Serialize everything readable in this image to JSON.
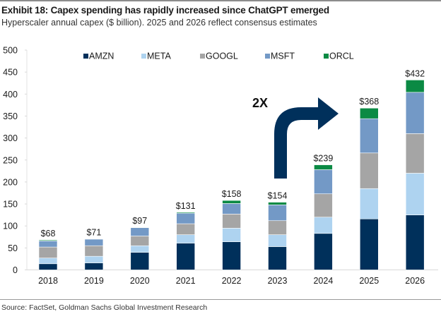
{
  "header": {
    "title": "Exhibit 18: Capex spending has rapidly increased since ChatGPT emerged",
    "subtitle": "Hyperscaler annual capex ($ billion). 2025 and 2026 reflect consensus estimates"
  },
  "footer": {
    "source": "Source: FactSet, Goldman Sachs Global Investment Research"
  },
  "chart_data": {
    "type": "bar",
    "stacked": true,
    "title": "Exhibit 18: Capex spending has rapidly increased since ChatGPT emerged",
    "subtitle": "Hyperscaler annual capex ($ billion). 2025 and 2026 reflect consensus estimates",
    "xlabel": "",
    "ylabel": "",
    "ylim": [
      0,
      500
    ],
    "yticks": [
      0,
      50,
      100,
      150,
      200,
      250,
      300,
      350,
      400,
      450,
      500
    ],
    "grid": false,
    "legend_position": "top",
    "categories": [
      "2018",
      "2019",
      "2020",
      "2021",
      "2022",
      "2023",
      "2024",
      "2025",
      "2026"
    ],
    "series": [
      {
        "name": "AMZN",
        "color": "#00305b",
        "values": [
          14,
          16,
          40,
          61,
          64,
          53,
          83,
          116,
          125
        ]
      },
      {
        "name": "META",
        "color": "#aed3f0",
        "values": [
          13,
          15,
          15,
          19,
          31,
          27,
          37,
          69,
          95
        ]
      },
      {
        "name": "GOOGL",
        "color": "#a5a5a5",
        "values": [
          25,
          24,
          22,
          25,
          32,
          32,
          53,
          81,
          90
        ]
      },
      {
        "name": "MSFT",
        "color": "#7399c6",
        "values": [
          14,
          15,
          19,
          24,
          24,
          36,
          55,
          78,
          94
        ]
      },
      {
        "name": "ORCL",
        "color": "#0b8a44",
        "values": [
          2,
          1,
          1,
          2,
          7,
          6,
          11,
          24,
          28
        ]
      }
    ],
    "totals": [
      68,
      71,
      97,
      131,
      158,
      154,
      239,
      368,
      432
    ],
    "total_labels": [
      "$68",
      "$71",
      "$97",
      "$131",
      "$158",
      "$154",
      "$239",
      "$368",
      "$432"
    ],
    "annotations": [
      {
        "text": "2X",
        "type": "curved-arrow",
        "from_category": "2023",
        "to_category": "2025",
        "color": "#00305b"
      }
    ]
  }
}
